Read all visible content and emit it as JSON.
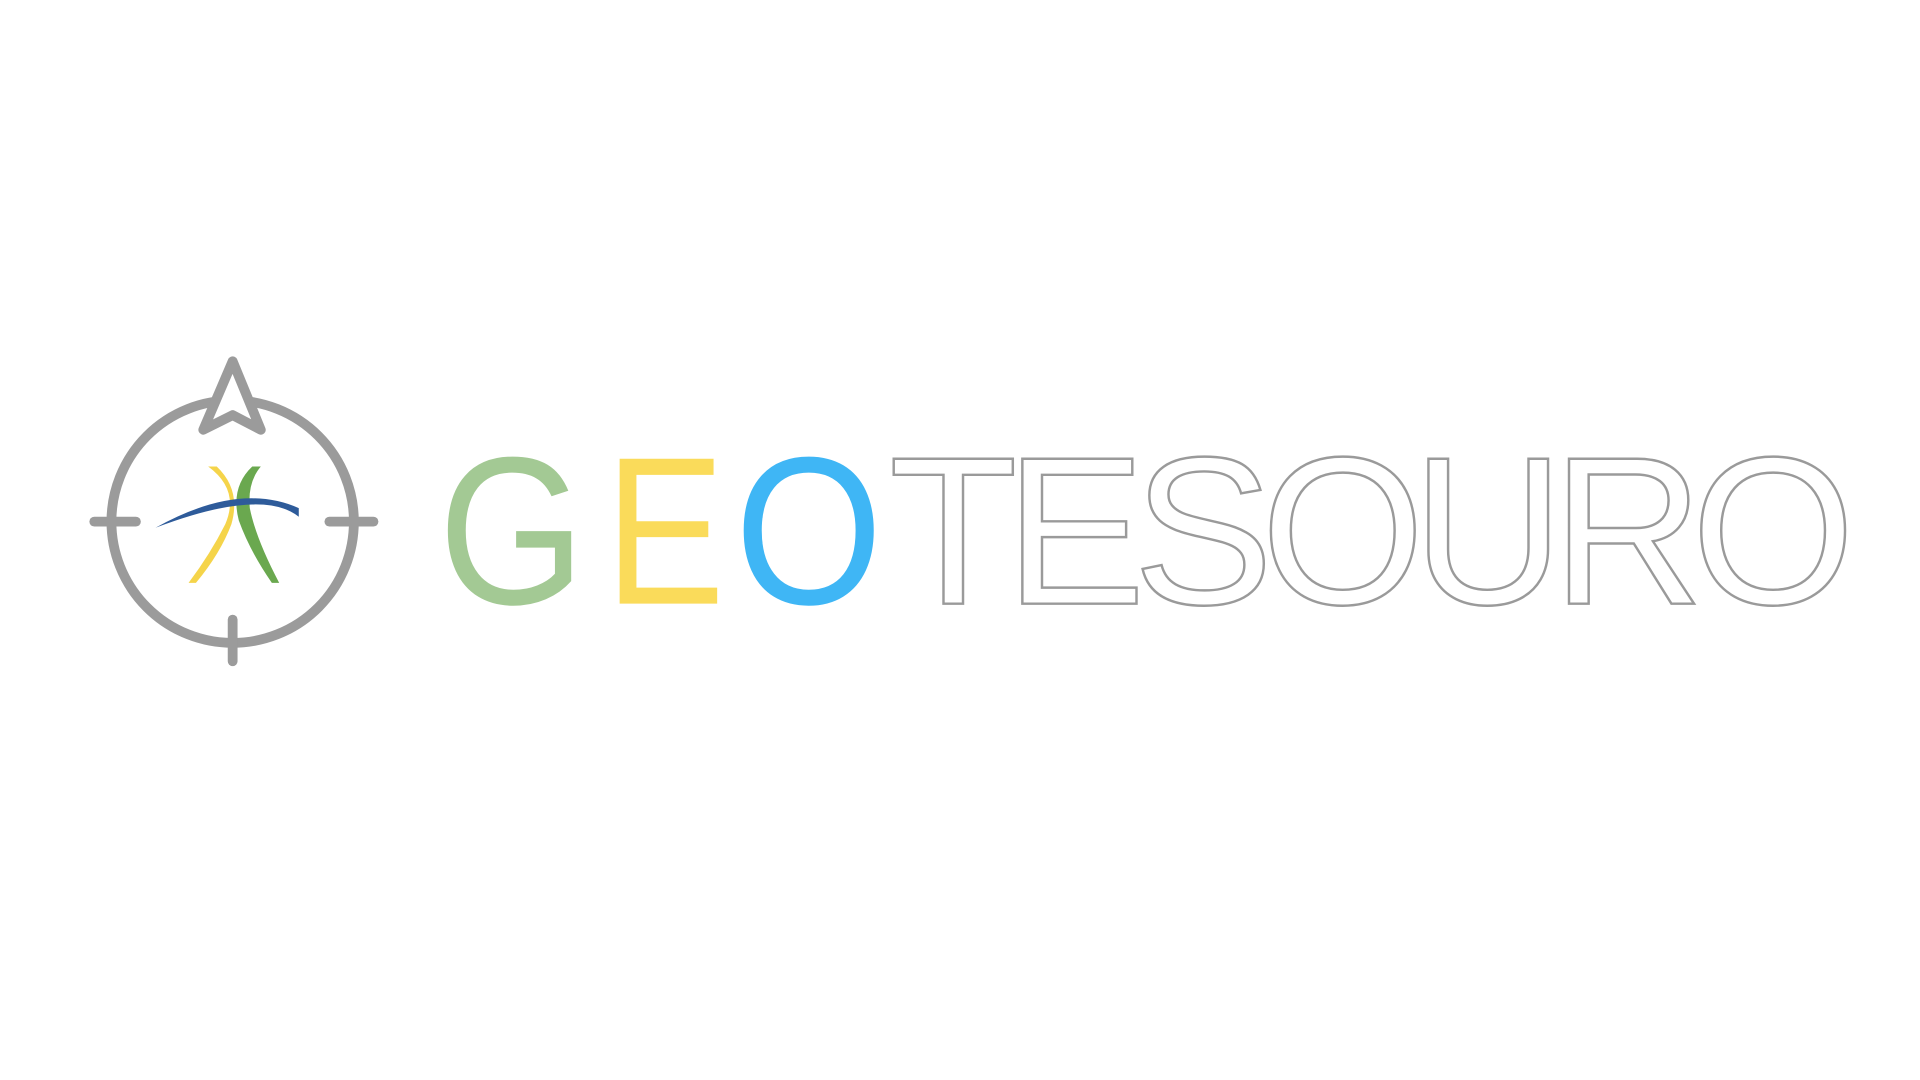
{
  "logo": {
    "letters": [
      "G",
      "E",
      "O",
      "TESOURO"
    ]
  }
}
